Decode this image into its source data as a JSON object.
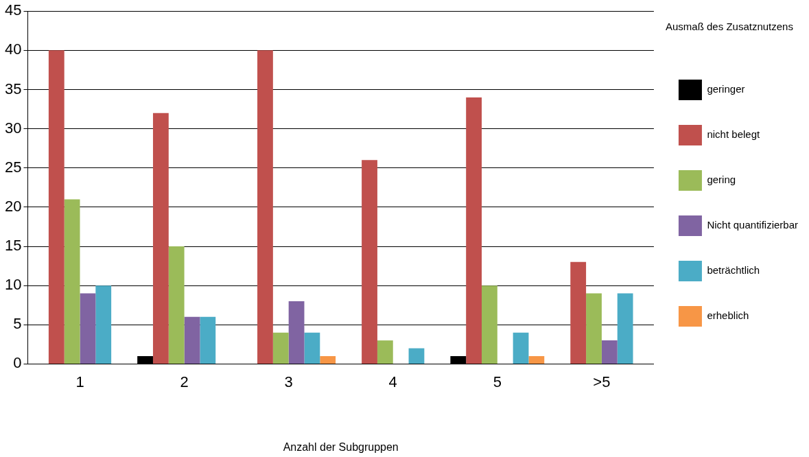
{
  "chart_data": {
    "type": "bar",
    "xlabel": "Anzahl der Subgruppen",
    "legend_title": "Ausmaß des Zusatznutzens",
    "categories": [
      "1",
      "2",
      "3",
      "4",
      "5",
      ">5"
    ],
    "series": [
      {
        "name": "geringer",
        "color": "#000000",
        "values": [
          null,
          1,
          null,
          null,
          1,
          null
        ]
      },
      {
        "name": "nicht belegt",
        "color": "#c0504d",
        "values": [
          40,
          32,
          40,
          26,
          34,
          13
        ]
      },
      {
        "name": "gering",
        "color": "#9bbb59",
        "values": [
          21,
          15,
          4,
          3,
          10,
          9
        ]
      },
      {
        "name": "Nicht quantifizierbar",
        "color": "#8064a2",
        "values": [
          9,
          6,
          8,
          null,
          null,
          3
        ]
      },
      {
        "name": "beträchtlich",
        "color": "#4bacc6",
        "values": [
          10,
          6,
          4,
          2,
          4,
          9
        ]
      },
      {
        "name": "erheblich",
        "color": "#f79646",
        "values": [
          null,
          null,
          1,
          null,
          1,
          null
        ]
      }
    ],
    "ylim": [
      0,
      45
    ],
    "yticks": [
      0,
      5,
      10,
      15,
      20,
      25,
      30,
      35,
      40,
      45
    ],
    "grid": "y",
    "legend": "right"
  }
}
